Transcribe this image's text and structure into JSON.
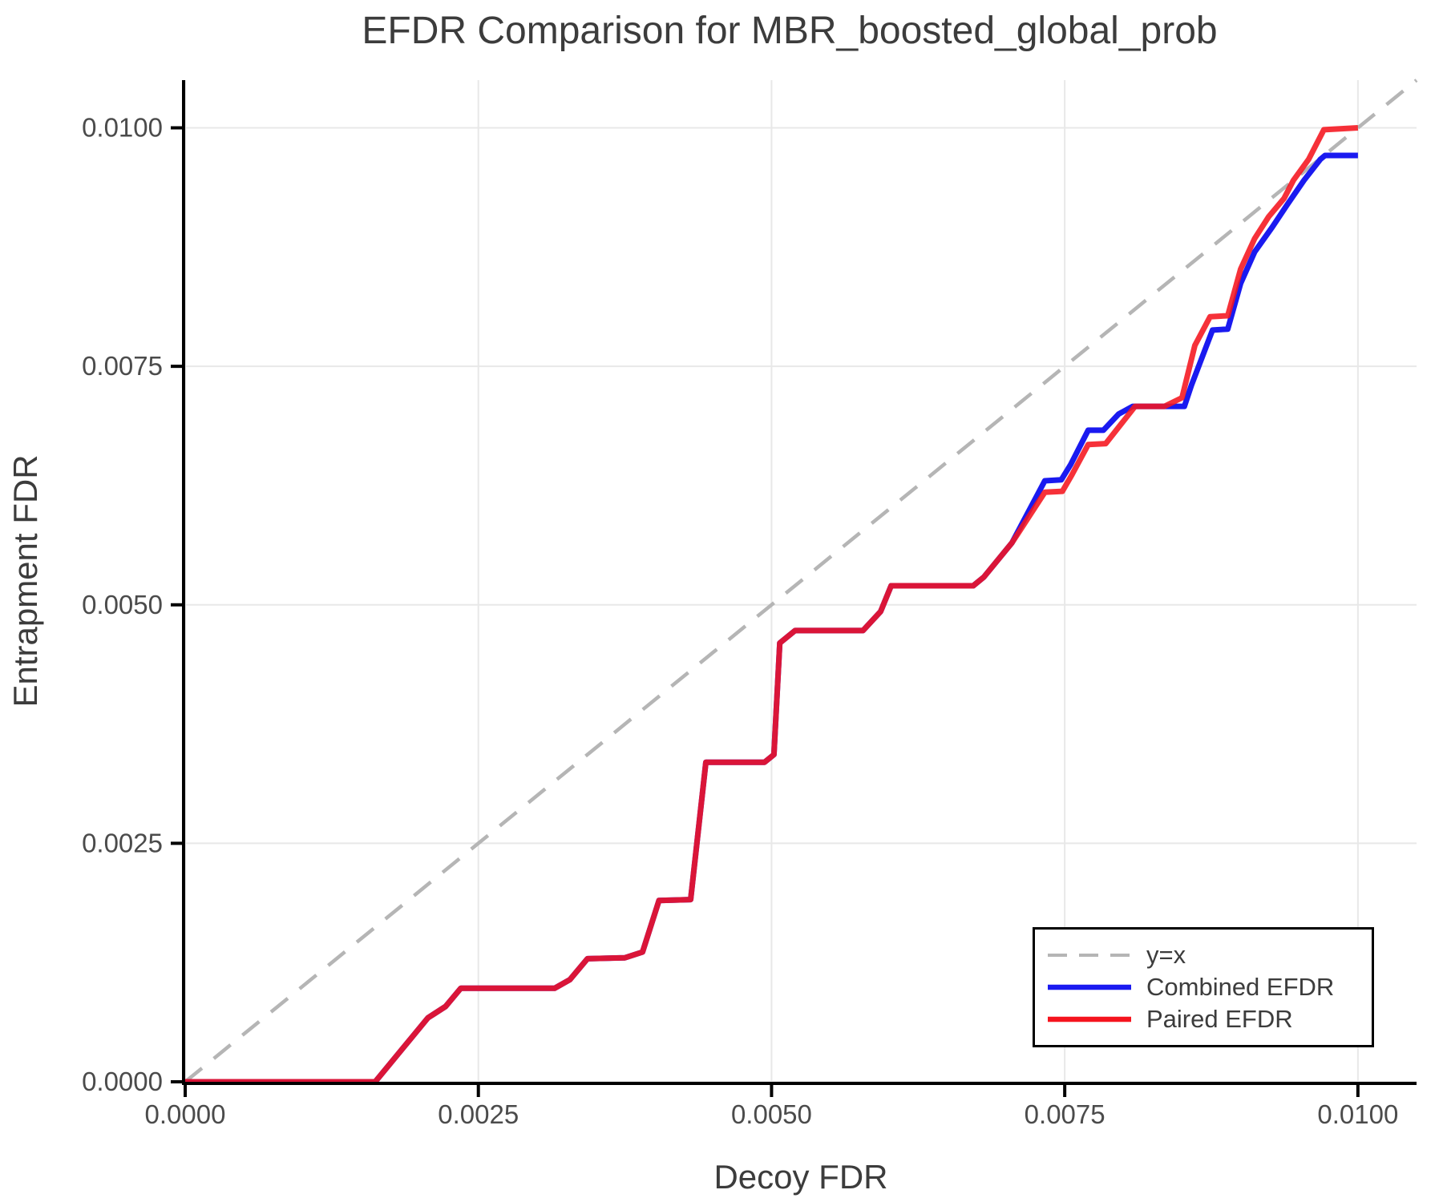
{
  "chart_data": {
    "type": "line",
    "title": "EFDR Comparison for MBR_boosted_global_prob",
    "xlabel": "Decoy FDR",
    "ylabel": "Entrapment FDR",
    "xlim": [
      0,
      0.0105
    ],
    "ylim": [
      0,
      0.0105
    ],
    "grid": true,
    "legend_position": "lower-right",
    "styles": {
      "grid_color": "#e8e8e8",
      "spine_color": "#000000",
      "title_color": "#3c3c3c",
      "tick_label_color": "#4b4b4b",
      "background": "#ffffff"
    },
    "xticks": {
      "values": [
        0,
        0.0025,
        0.005,
        0.0075,
        0.01
      ],
      "labels": [
        "0.0000",
        "0.0025",
        "0.0050",
        "0.0075",
        "0.0100"
      ]
    },
    "yticks": {
      "values": [
        0,
        0.0025,
        0.005,
        0.0075,
        0.01
      ],
      "labels": [
        "0.0000",
        "0.0025",
        "0.0050",
        "0.0075",
        "0.0100"
      ]
    },
    "series": [
      {
        "name": "y=x",
        "style": "dashed",
        "color": "#b5b5b5",
        "width": 4.5,
        "opacity": 1,
        "x": [
          0,
          0.0105
        ],
        "y": [
          0,
          0.0105
        ]
      },
      {
        "name": "Combined EFDR",
        "style": "solid",
        "color": "#1a1af0",
        "width": 7,
        "opacity": 1,
        "x": [
          0,
          0.00162,
          0.00207,
          0.00212,
          0.00222,
          0.00235,
          0.00315,
          0.00328,
          0.00343,
          0.00375,
          0.0039,
          0.00404,
          0.00431,
          0.00444,
          0.00494,
          0.00502,
          0.00507,
          0.0052,
          0.00578,
          0.00593,
          0.00602,
          0.00672,
          0.00681,
          0.00705,
          0.00733,
          0.00747,
          0.00755,
          0.0077,
          0.00783,
          0.00796,
          0.00808,
          0.00852,
          0.00858,
          0.00876,
          0.00889,
          0.009,
          0.00912,
          0.00927,
          0.0094,
          0.00954,
          0.00968,
          0.00972,
          0.01
        ],
        "y": [
          0,
          0,
          0.00067,
          0.00071,
          0.00079,
          0.00098,
          0.00098,
          0.00107,
          0.00129,
          0.0013,
          0.00136,
          0.0019,
          0.00191,
          0.00335,
          0.00335,
          0.00343,
          0.0046,
          0.00473,
          0.00473,
          0.00493,
          0.0052,
          0.0052,
          0.00529,
          0.00565,
          0.0063,
          0.00631,
          0.00647,
          0.00683,
          0.00683,
          0.007,
          0.00708,
          0.00708,
          0.0073,
          0.00788,
          0.00789,
          0.00837,
          0.0087,
          0.00896,
          0.0092,
          0.00945,
          0.00967,
          0.00971,
          0.00971
        ]
      },
      {
        "name": "Paired EFDR",
        "style": "solid",
        "color": "#f5141e",
        "width": 7,
        "opacity": 0.88,
        "x": [
          0,
          0.00162,
          0.00207,
          0.00212,
          0.00222,
          0.00235,
          0.00315,
          0.00328,
          0.00343,
          0.00375,
          0.0039,
          0.00404,
          0.00431,
          0.00444,
          0.00494,
          0.00502,
          0.00507,
          0.0052,
          0.00578,
          0.00593,
          0.00602,
          0.00672,
          0.00681,
          0.00705,
          0.00733,
          0.00748,
          0.00756,
          0.0077,
          0.00785,
          0.0081,
          0.00835,
          0.0085,
          0.00861,
          0.00874,
          0.00889,
          0.009,
          0.00912,
          0.00924,
          0.00937,
          0.00945,
          0.00958,
          0.00971,
          0.01
        ],
        "y": [
          0,
          0,
          0.00067,
          0.00071,
          0.00079,
          0.00098,
          0.00098,
          0.00107,
          0.00129,
          0.0013,
          0.00136,
          0.0019,
          0.00191,
          0.00335,
          0.00335,
          0.00343,
          0.0046,
          0.00473,
          0.00473,
          0.00493,
          0.0052,
          0.0052,
          0.00529,
          0.00565,
          0.00618,
          0.00619,
          0.00636,
          0.00668,
          0.00669,
          0.00708,
          0.00708,
          0.00717,
          0.00772,
          0.00802,
          0.00803,
          0.00852,
          0.00884,
          0.00907,
          0.00926,
          0.00945,
          0.00967,
          0.00998,
          0.01
        ]
      }
    ]
  }
}
